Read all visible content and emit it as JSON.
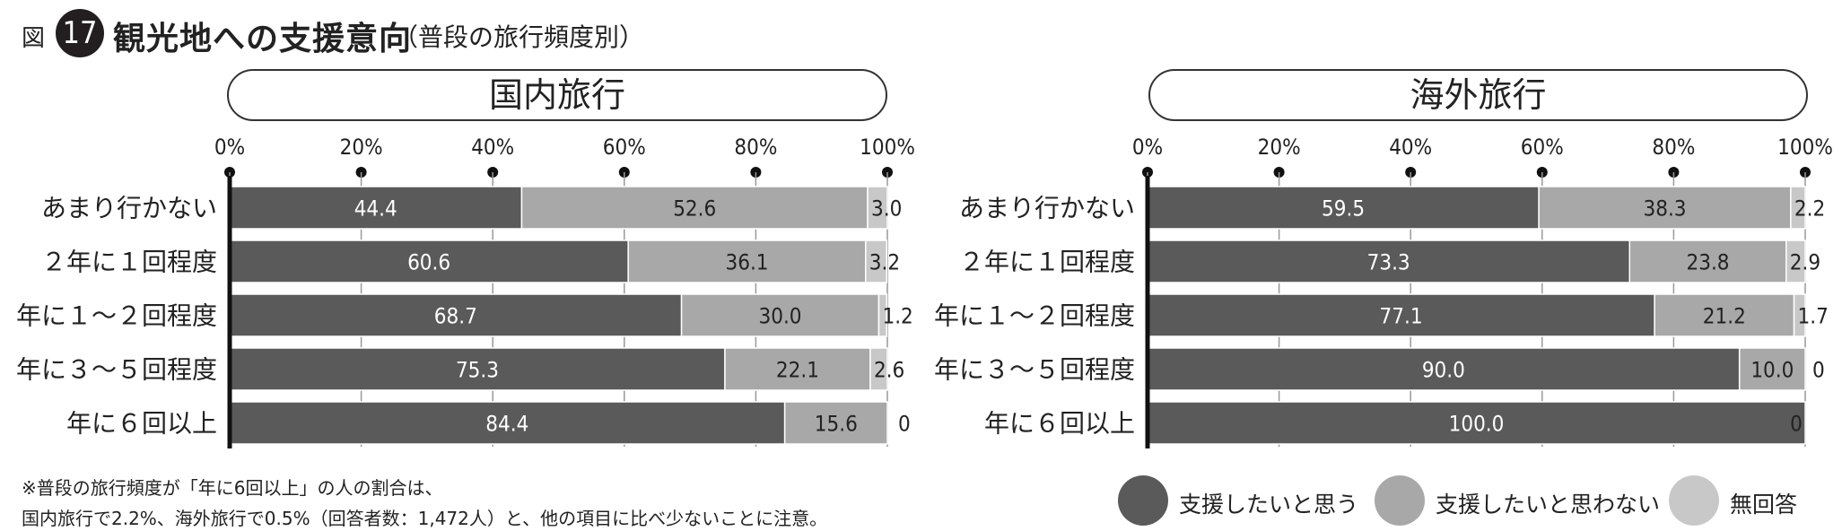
{
  "figure": {
    "label": "図",
    "number": "17",
    "title": "観光地への支援意向",
    "subtitle": "（普段の旅行頻度別）"
  },
  "colors": {
    "support": "#5a5a5a",
    "no_support": "#a8a8a8",
    "no_answer": "#c8c8c8"
  },
  "chart_data": [
    {
      "type": "bar",
      "orientation": "horizontal-stacked",
      "title": "国内旅行",
      "x_tick_labels": [
        "0%",
        "20%",
        "40%",
        "60%",
        "80%",
        "100%"
      ],
      "xlim": [
        0,
        100
      ],
      "categories": [
        "あまり行かない",
        "２年に１回程度",
        "年に１～２回程度",
        "年に３～５回程度",
        "年に６回以上"
      ],
      "series": [
        {
          "name": "支援したいと思う",
          "values": [
            44.4,
            60.6,
            68.7,
            75.3,
            84.4
          ],
          "labels": [
            "44.4",
            "60.6",
            "68.7",
            "75.3",
            "84.4"
          ]
        },
        {
          "name": "支援したいと思わない",
          "values": [
            52.6,
            36.1,
            30.0,
            22.1,
            15.6
          ],
          "labels": [
            "52.6",
            "36.1",
            "30.0",
            "22.1",
            "15.6"
          ]
        },
        {
          "name": "無回答",
          "values": [
            3.0,
            3.2,
            1.2,
            2.6,
            0
          ],
          "labels": [
            "3.0",
            "3.2",
            "1.2",
            "2.6",
            "0"
          ]
        }
      ]
    },
    {
      "type": "bar",
      "orientation": "horizontal-stacked",
      "title": "海外旅行",
      "x_tick_labels": [
        "0%",
        "20%",
        "40%",
        "60%",
        "80%",
        "100%"
      ],
      "xlim": [
        0,
        100
      ],
      "categories": [
        "あまり行かない",
        "２年に１回程度",
        "年に１～２回程度",
        "年に３～５回程度",
        "年に６回以上"
      ],
      "series": [
        {
          "name": "支援したいと思う",
          "values": [
            59.5,
            73.3,
            77.1,
            90.0,
            100.0
          ],
          "labels": [
            "59.5",
            "73.3",
            "77.1",
            "90.0",
            "100.0"
          ]
        },
        {
          "name": "支援したいと思わない",
          "values": [
            38.3,
            23.8,
            21.2,
            10.0,
            0
          ],
          "labels": [
            "38.3",
            "23.8",
            "21.2",
            "10.0",
            "0"
          ]
        },
        {
          "name": "無回答",
          "values": [
            2.2,
            2.9,
            1.7,
            0,
            0
          ],
          "labels": [
            "2.2",
            "2.9",
            "1.7",
            "0",
            ""
          ]
        }
      ]
    }
  ],
  "legend": [
    {
      "label": "支援したいと思う",
      "color": "#5a5a5a"
    },
    {
      "label": "支援したいと思わない",
      "color": "#a8a8a8"
    },
    {
      "label": "無回答",
      "color": "#c8c8c8"
    }
  ],
  "footnote": {
    "line1": "※普段の旅行頻度が「年に6回以上」の人の割合は、",
    "line2": "国内旅行で2.2%、海外旅行で0.5%（回答者数：1,472人）と、他の項目に比べ少ないことに注意。"
  }
}
